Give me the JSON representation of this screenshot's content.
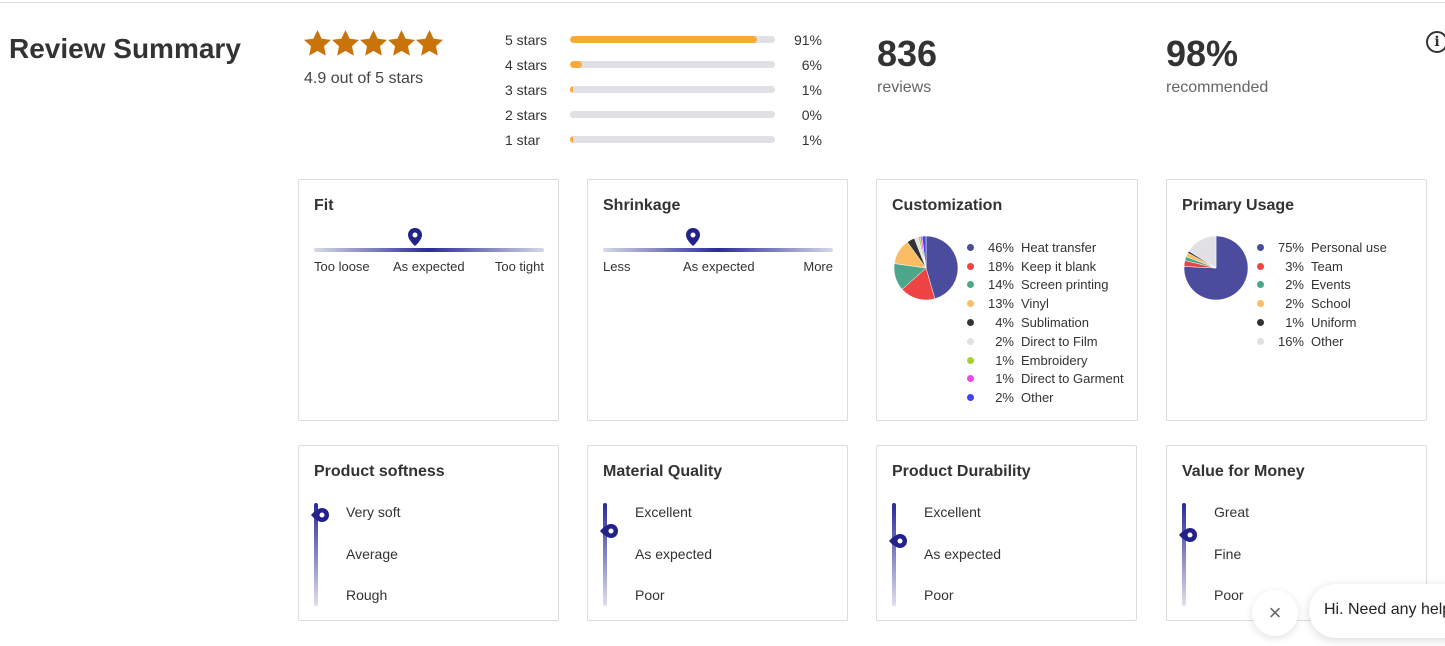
{
  "title": "Review Summary",
  "rating": {
    "value": 4.9,
    "max": 5,
    "label": "4.9 out of 5 stars",
    "star_color": "#c8740a"
  },
  "distribution": [
    {
      "label": "5 stars",
      "pct": "91%",
      "value": 91
    },
    {
      "label": "4 stars",
      "pct": "6%",
      "value": 6
    },
    {
      "label": "3 stars",
      "pct": "1%",
      "value": 1
    },
    {
      "label": "2 stars",
      "pct": "0%",
      "value": 0
    },
    {
      "label": "1 star",
      "pct": "1%",
      "value": 1
    }
  ],
  "reviews": {
    "count": "836",
    "label": "reviews"
  },
  "recommended": {
    "value": "98%",
    "label": "recommended"
  },
  "info_icon": "i",
  "fit": {
    "title": "Fit",
    "labels": [
      "Too loose",
      "As expected",
      "Too tight"
    ],
    "position": 0.44
  },
  "shrinkage": {
    "title": "Shrinkage",
    "labels": [
      "Less",
      "As expected",
      "More"
    ],
    "position": 0.39
  },
  "customization": {
    "title": "Customization",
    "items": [
      {
        "pct": "46%",
        "label": "Heat transfer",
        "value": 46,
        "color": "#4b4c9e"
      },
      {
        "pct": "18%",
        "label": "Keep it blank",
        "value": 18,
        "color": "#ee4444"
      },
      {
        "pct": "14%",
        "label": "Screen printing",
        "value": 14,
        "color": "#4ca68a"
      },
      {
        "pct": "13%",
        "label": "Vinyl",
        "value": 13,
        "color": "#fbbd63"
      },
      {
        "pct": "4%",
        "label": "Sublimation",
        "value": 4,
        "color": "#333333"
      },
      {
        "pct": "2%",
        "label": "Direct to Film",
        "value": 2,
        "color": "#e0e0e5"
      },
      {
        "pct": "1%",
        "label": "Embroidery",
        "value": 1,
        "color": "#a6d02a"
      },
      {
        "pct": "1%",
        "label": "Direct to Garment",
        "value": 1,
        "color": "#ee44ee"
      },
      {
        "pct": "2%",
        "label": "Other",
        "value": 2,
        "color": "#4444ee"
      }
    ]
  },
  "primary_usage": {
    "title": "Primary Usage",
    "items": [
      {
        "pct": "75%",
        "label": "Personal use",
        "value": 75,
        "color": "#4b4c9e"
      },
      {
        "pct": "3%",
        "label": "Team",
        "value": 3,
        "color": "#ee4444"
      },
      {
        "pct": "2%",
        "label": "Events",
        "value": 2,
        "color": "#4ca68a"
      },
      {
        "pct": "2%",
        "label": "School",
        "value": 2,
        "color": "#fbbd63"
      },
      {
        "pct": "1%",
        "label": "Uniform",
        "value": 1,
        "color": "#333333"
      },
      {
        "pct": "16%",
        "label": "Other",
        "value": 16,
        "color": "#e0e0e5"
      }
    ]
  },
  "vertical": [
    {
      "title": "Product softness",
      "labels": [
        "Very soft",
        "Average",
        "Rough"
      ],
      "position": 0.05
    },
    {
      "title": "Material Quality",
      "labels": [
        "Excellent",
        "As expected",
        "Poor"
      ],
      "position": 0.2
    },
    {
      "title": "Product Durability",
      "labels": [
        "Excellent",
        "As expected",
        "Poor"
      ],
      "position": 0.3
    },
    {
      "title": "Value for Money",
      "labels": [
        "Great",
        "Fine",
        "Poor"
      ],
      "position": 0.24
    }
  ],
  "chat": {
    "message": "Hi. Need any help?",
    "close": "×"
  }
}
